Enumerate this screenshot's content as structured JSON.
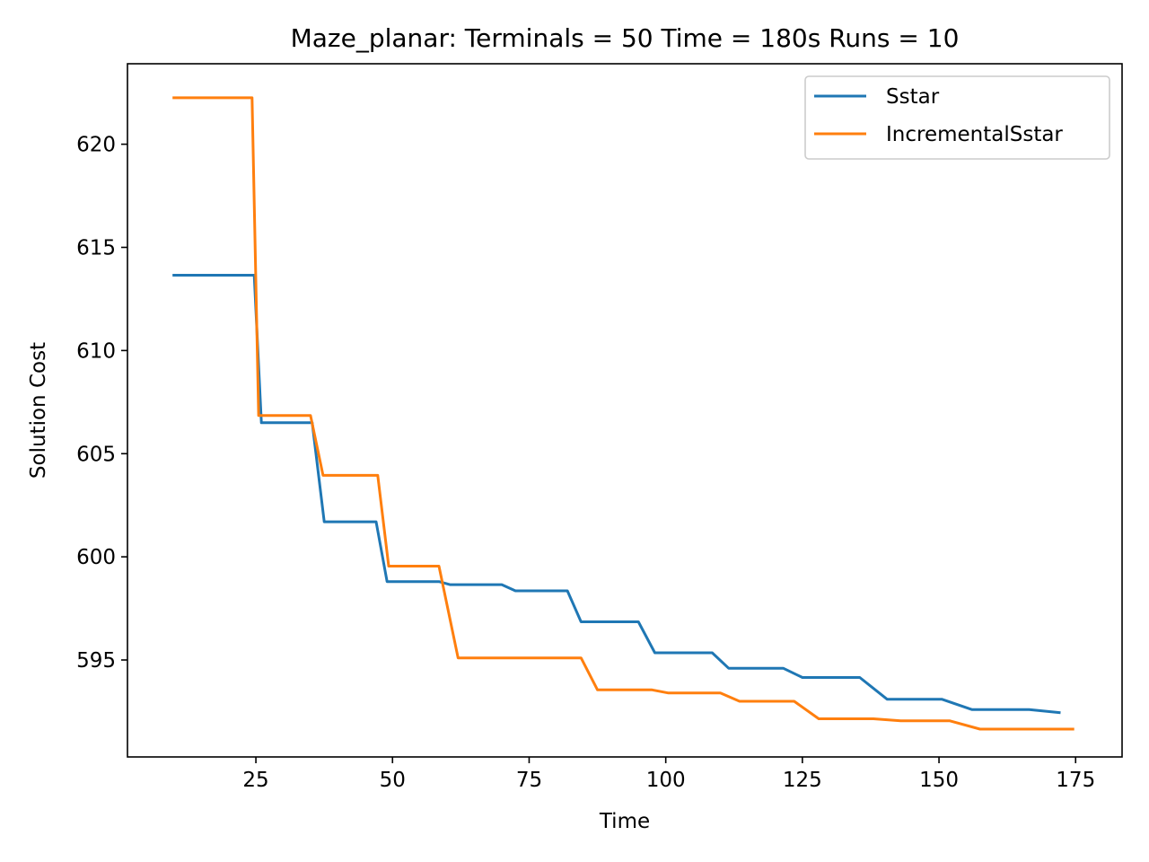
{
  "chart_data": {
    "type": "line",
    "title": "Maze_planar:  Terminals = 50  Time = 180s  Runs = 10",
    "xlabel": "Time",
    "ylabel": "Solution Cost",
    "xlim": [
      1.5,
      183.5
    ],
    "ylim": [
      590.3,
      623.9
    ],
    "xticks": [
      25,
      50,
      75,
      100,
      125,
      150,
      175
    ],
    "yticks": [
      595,
      600,
      605,
      610,
      615,
      620
    ],
    "grid": false,
    "legend_position": "top-right",
    "series": [
      {
        "name": "Sstar",
        "color": "#1f77b4",
        "points": [
          [
            10,
            613.65
          ],
          [
            24.7,
            613.65
          ],
          [
            26,
            606.5
          ],
          [
            35.3,
            606.5
          ],
          [
            37.5,
            601.7
          ],
          [
            47,
            601.7
          ],
          [
            49,
            598.8
          ],
          [
            58.5,
            598.8
          ],
          [
            60.5,
            598.65
          ],
          [
            70,
            598.65
          ],
          [
            72.5,
            598.35
          ],
          [
            82,
            598.35
          ],
          [
            84.5,
            596.85
          ],
          [
            95,
            596.85
          ],
          [
            98,
            595.35
          ],
          [
            108.5,
            595.35
          ],
          [
            111.5,
            594.6
          ],
          [
            121.5,
            594.6
          ],
          [
            125,
            594.15
          ],
          [
            135.5,
            594.15
          ],
          [
            140.5,
            593.1
          ],
          [
            150.5,
            593.1
          ],
          [
            156,
            592.6
          ],
          [
            166.5,
            592.6
          ],
          [
            172,
            592.45
          ]
        ]
      },
      {
        "name": "IncrementalSstar",
        "color": "#ff7f0e",
        "points": [
          [
            10,
            622.25
          ],
          [
            24.3,
            622.25
          ],
          [
            25.5,
            606.85
          ],
          [
            35,
            606.85
          ],
          [
            37.3,
            603.95
          ],
          [
            47.3,
            603.95
          ],
          [
            49.3,
            599.55
          ],
          [
            58.5,
            599.55
          ],
          [
            62,
            595.1
          ],
          [
            84.5,
            595.1
          ],
          [
            87.5,
            593.55
          ],
          [
            97.5,
            593.55
          ],
          [
            100.5,
            593.4
          ],
          [
            110,
            593.4
          ],
          [
            113.5,
            593
          ],
          [
            123.5,
            593
          ],
          [
            128,
            592.15
          ],
          [
            138,
            592.15
          ],
          [
            143,
            592.05
          ],
          [
            152,
            592.05
          ],
          [
            157.5,
            591.65
          ],
          [
            174.5,
            591.65
          ]
        ]
      }
    ]
  }
}
